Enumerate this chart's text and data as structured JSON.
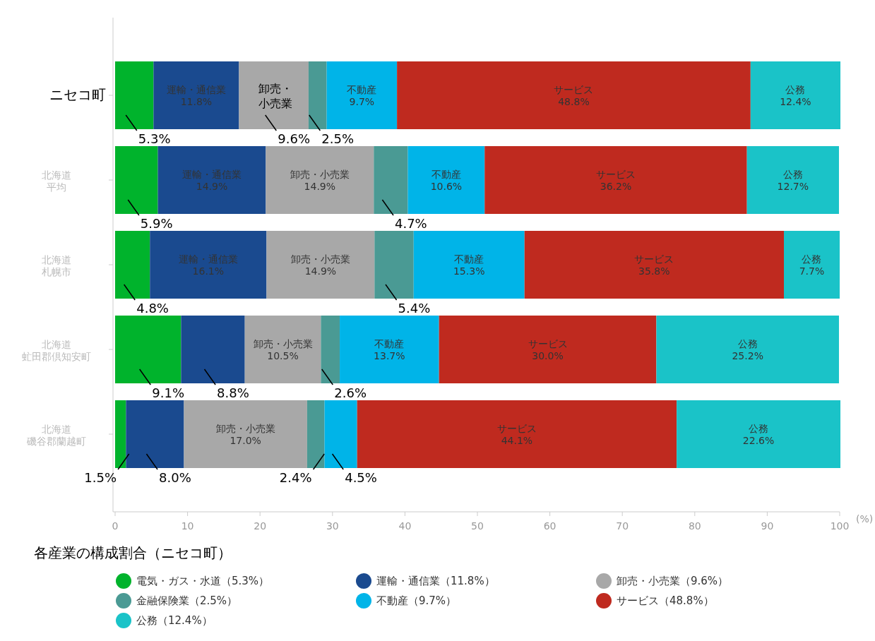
{
  "chart_data": {
    "type": "bar",
    "orientation": "horizontal",
    "stacked": true,
    "categories": [
      "ニセコ町",
      "北海道平均",
      "北海道札幌市",
      "北海道虻田郡倶知安町",
      "北海道磯谷郡蘭越町"
    ],
    "xlabel": "(%)",
    "xlim": [
      0,
      100
    ],
    "xticks": [
      0,
      10,
      20,
      30,
      40,
      50,
      60,
      70,
      80,
      90,
      100
    ],
    "legend": "bottom",
    "legend_title": "各産業の構成割合（ニセコ町）",
    "grid": false,
    "annotations": [
      {
        "text": "卸売・小売業",
        "x": 22.1,
        "y": "ニセコ町"
      }
    ],
    "series": [
      {
        "name": "電気・ガス・水道（5.3%）",
        "color": "#00b32c",
        "values": [
          5.3,
          5.9,
          4.8,
          9.1,
          1.5
        ],
        "value_labels": [
          "5.3%",
          "5.9%",
          "4.8%",
          "9.1%",
          "1.5%"
        ]
      },
      {
        "name": "運輸・通信業（11.8%）",
        "color": "#1a4a8f",
        "values": [
          11.8,
          14.9,
          16.1,
          8.8,
          8.0
        ],
        "value_labels": [
          "運輸・通信業11.8%",
          "運輸・通信業14.9%",
          "運輸・通信業16.1%",
          "8.8%",
          "8.0%"
        ]
      },
      {
        "name": "卸売・小売業（9.6%）",
        "color": "#a8a8a8",
        "values": [
          9.6,
          14.9,
          14.9,
          10.5,
          17.0
        ],
        "value_labels": [
          "9.6%",
          "卸売・小売業14.9%",
          "卸売・小売業14.9%",
          "卸売・小売業10.5%",
          "卸売・小売業17.0%"
        ]
      },
      {
        "name": "金融保険業（2.5%）",
        "color": "#4a9a94",
        "values": [
          2.5,
          4.7,
          5.4,
          2.6,
          2.4
        ],
        "value_labels": [
          "2.5%",
          "4.7%",
          "5.4%",
          "2.6%",
          "2.4%"
        ]
      },
      {
        "name": "不動産（9.7%）",
        "color": "#00b4e8",
        "values": [
          9.7,
          10.6,
          15.3,
          13.7,
          4.5
        ],
        "value_labels": [
          "不動産9.7%",
          "不動産10.6%",
          "不動産15.3%",
          "不動産13.7%",
          "4.5%"
        ]
      },
      {
        "name": "サービス（48.8%）",
        "color": "#bf2a1f",
        "values": [
          48.8,
          36.2,
          35.8,
          30.0,
          44.1
        ],
        "value_labels": [
          "サービス48.8%",
          "サービス36.2%",
          "サービス35.8%",
          "サービス30.0%",
          "サービス44.1%"
        ]
      },
      {
        "name": "公務（12.4%）",
        "color": "#1ac3c8",
        "values": [
          12.4,
          12.7,
          7.7,
          25.2,
          22.6
        ],
        "value_labels": [
          "公務12.4%",
          "公務12.7%",
          "公務7.7%",
          "公務25.2%",
          "公務22.6%"
        ]
      }
    ]
  }
}
